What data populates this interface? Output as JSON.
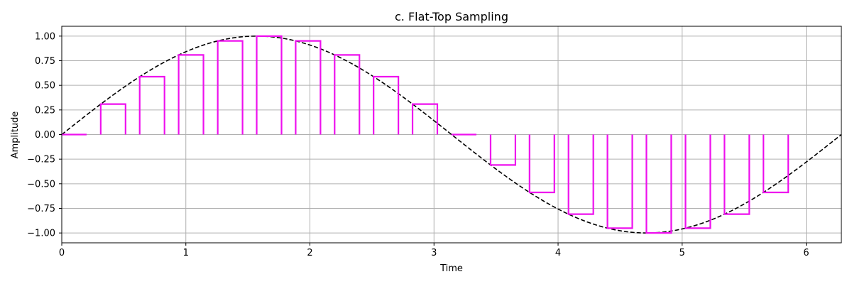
{
  "chart_data": {
    "type": "line",
    "title": "c. Flat-Top Sampling",
    "xlabel": "Time",
    "ylabel": "Amplitude",
    "xlim": [
      0,
      6.283
    ],
    "ylim": [
      -1.1,
      1.1
    ],
    "grid": true,
    "x_ticks": [
      "0",
      "1",
      "2",
      "3",
      "4",
      "5",
      "6"
    ],
    "y_ticks": [
      "1.00",
      "0.75",
      "0.50",
      "0.25",
      "0.00",
      "−0.25",
      "−0.50",
      "−0.75",
      "−1.00"
    ],
    "series": [
      {
        "style": "dashed",
        "color": "#000000",
        "x": [
          0,
          0.2618,
          0.5236,
          0.7854,
          1.0472,
          1.309,
          1.5708,
          1.8326,
          2.0944,
          2.3562,
          2.618,
          2.8798,
          3.1416,
          3.4034,
          3.6652,
          3.927,
          4.1888,
          4.4506,
          4.7124,
          4.9742,
          5.236,
          5.4978,
          5.7596,
          6.0214,
          6.2832
        ],
        "y": [
          0,
          0.259,
          0.5,
          0.707,
          0.866,
          0.966,
          1.0,
          0.966,
          0.866,
          0.707,
          0.5,
          0.259,
          0,
          -0.259,
          -0.5,
          -0.707,
          -0.866,
          -0.966,
          -1.0,
          -0.966,
          -0.866,
          -0.707,
          -0.5,
          -0.259,
          0
        ]
      },
      {
        "style": "flat-top pulses",
        "color": "#ee11ee",
        "pulse_width": 0.2,
        "pulse_starts": [
          0,
          0.314,
          0.628,
          0.942,
          1.257,
          1.571,
          1.885,
          2.199,
          2.513,
          2.827,
          3.142,
          3.456,
          3.77,
          4.084,
          4.398,
          4.712,
          5.027,
          5.341,
          5.655
        ],
        "values": [
          0,
          0.309,
          0.588,
          0.809,
          0.951,
          1.0,
          0.951,
          0.809,
          0.588,
          0.309,
          0,
          -0.309,
          -0.588,
          -0.809,
          -0.951,
          -1.0,
          -0.951,
          -0.809,
          -0.588
        ]
      }
    ]
  }
}
